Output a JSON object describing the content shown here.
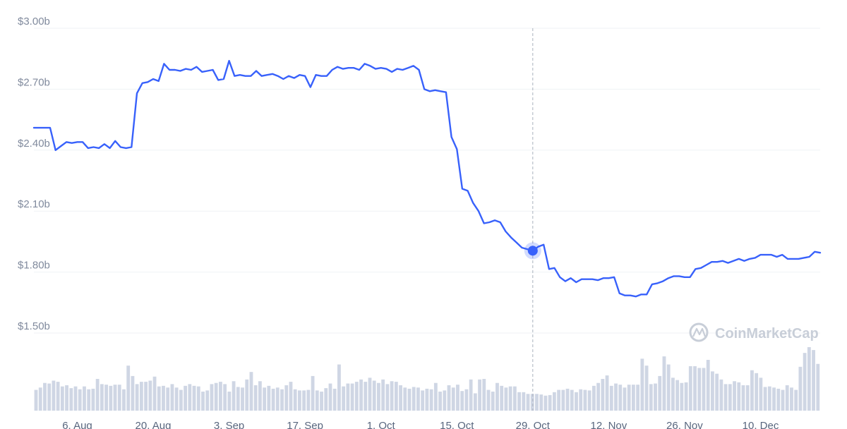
{
  "chart_data": {
    "type": "line",
    "watermark": "CoinMarketCap",
    "y_ticks": [
      "$3.00b",
      "$2.70b",
      "$2.40b",
      "$2.10b",
      "$1.80b",
      "$1.50b"
    ],
    "ylim_billions": [
      1.5,
      3.0
    ],
    "x_ticks": [
      "6. Aug",
      "20. Aug",
      "3. Sep",
      "17. Sep",
      "1. Oct",
      "15. Oct",
      "29. Oct",
      "12. Nov",
      "26. Nov",
      "10. Dec"
    ],
    "x_tick_dates": [
      "2018-08-06",
      "2018-08-20",
      "2018-09-03",
      "2018-09-17",
      "2018-10-01",
      "2018-10-15",
      "2018-10-29",
      "2018-11-12",
      "2018-11-26",
      "2018-12-10"
    ],
    "date_range": [
      "2018-07-29",
      "2018-12-21"
    ],
    "highlight": {
      "date": "2018-10-29",
      "value_billions": 1.905
    },
    "colors": {
      "line": "#3861fb",
      "volume": "#cfd6e4",
      "grid": "#eff2f5",
      "crosshair": "#aab1bd",
      "watermark": "#c8ced8"
    },
    "series": [
      {
        "kind": "market_cap",
        "unit": "billions USD",
        "points": [
          [
            "2018-07-29",
            2.51
          ],
          [
            "2018-07-31",
            2.51
          ],
          [
            "2018-08-01",
            2.51
          ],
          [
            "2018-08-02",
            2.4
          ],
          [
            "2018-08-03",
            2.42
          ],
          [
            "2018-08-04",
            2.44
          ],
          [
            "2018-08-05",
            2.435
          ],
          [
            "2018-08-06",
            2.44
          ],
          [
            "2018-08-07",
            2.44
          ],
          [
            "2018-08-08",
            2.41
          ],
          [
            "2018-08-09",
            2.415
          ],
          [
            "2018-08-10",
            2.41
          ],
          [
            "2018-08-11",
            2.43
          ],
          [
            "2018-08-12",
            2.41
          ],
          [
            "2018-08-13",
            2.445
          ],
          [
            "2018-08-14",
            2.415
          ],
          [
            "2018-08-15",
            2.41
          ],
          [
            "2018-08-16",
            2.415
          ],
          [
            "2018-08-17",
            2.68
          ],
          [
            "2018-08-18",
            2.73
          ],
          [
            "2018-08-19",
            2.735
          ],
          [
            "2018-08-20",
            2.75
          ],
          [
            "2018-08-21",
            2.74
          ],
          [
            "2018-08-22",
            2.825
          ],
          [
            "2018-08-23",
            2.795
          ],
          [
            "2018-08-24",
            2.795
          ],
          [
            "2018-08-25",
            2.79
          ],
          [
            "2018-08-26",
            2.8
          ],
          [
            "2018-08-27",
            2.795
          ],
          [
            "2018-08-28",
            2.81
          ],
          [
            "2018-08-29",
            2.785
          ],
          [
            "2018-08-30",
            2.79
          ],
          [
            "2018-08-31",
            2.795
          ],
          [
            "2018-09-01",
            2.745
          ],
          [
            "2018-09-02",
            2.75
          ],
          [
            "2018-09-03",
            2.84
          ],
          [
            "2018-09-04",
            2.765
          ],
          [
            "2018-09-05",
            2.77
          ],
          [
            "2018-09-06",
            2.765
          ],
          [
            "2018-09-07",
            2.765
          ],
          [
            "2018-09-08",
            2.79
          ],
          [
            "2018-09-09",
            2.765
          ],
          [
            "2018-09-10",
            2.77
          ],
          [
            "2018-09-11",
            2.775
          ],
          [
            "2018-09-12",
            2.765
          ],
          [
            "2018-09-13",
            2.75
          ],
          [
            "2018-09-14",
            2.765
          ],
          [
            "2018-09-15",
            2.755
          ],
          [
            "2018-09-16",
            2.77
          ],
          [
            "2018-09-17",
            2.765
          ],
          [
            "2018-09-18",
            2.71
          ],
          [
            "2018-09-19",
            2.77
          ],
          [
            "2018-09-20",
            2.765
          ],
          [
            "2018-09-21",
            2.765
          ],
          [
            "2018-09-22",
            2.795
          ],
          [
            "2018-09-23",
            2.81
          ],
          [
            "2018-09-24",
            2.8
          ],
          [
            "2018-09-25",
            2.805
          ],
          [
            "2018-09-26",
            2.805
          ],
          [
            "2018-09-27",
            2.795
          ],
          [
            "2018-09-28",
            2.825
          ],
          [
            "2018-09-29",
            2.815
          ],
          [
            "2018-09-30",
            2.8
          ],
          [
            "2018-10-01",
            2.805
          ],
          [
            "2018-10-02",
            2.8
          ],
          [
            "2018-10-03",
            2.785
          ],
          [
            "2018-10-04",
            2.8
          ],
          [
            "2018-10-05",
            2.795
          ],
          [
            "2018-10-06",
            2.805
          ],
          [
            "2018-10-07",
            2.815
          ],
          [
            "2018-10-08",
            2.795
          ],
          [
            "2018-10-09",
            2.7
          ],
          [
            "2018-10-10",
            2.69
          ],
          [
            "2018-10-11",
            2.695
          ],
          [
            "2018-10-12",
            2.69
          ],
          [
            "2018-10-13",
            2.685
          ],
          [
            "2018-10-14",
            2.465
          ],
          [
            "2018-10-15",
            2.405
          ],
          [
            "2018-10-16",
            2.21
          ],
          [
            "2018-10-17",
            2.2
          ],
          [
            "2018-10-18",
            2.14
          ],
          [
            "2018-10-19",
            2.1
          ],
          [
            "2018-10-20",
            2.04
          ],
          [
            "2018-10-21",
            2.045
          ],
          [
            "2018-10-22",
            2.055
          ],
          [
            "2018-10-23",
            2.045
          ],
          [
            "2018-10-24",
            2.0
          ],
          [
            "2018-10-25",
            1.97
          ],
          [
            "2018-10-26",
            1.945
          ],
          [
            "2018-10-27",
            1.92
          ],
          [
            "2018-10-29",
            1.905
          ],
          [
            "2018-10-30",
            1.925
          ],
          [
            "2018-10-31",
            1.935
          ],
          [
            "2018-11-01",
            1.815
          ],
          [
            "2018-11-02",
            1.82
          ],
          [
            "2018-11-03",
            1.775
          ],
          [
            "2018-11-04",
            1.755
          ],
          [
            "2018-11-05",
            1.77
          ],
          [
            "2018-11-06",
            1.75
          ],
          [
            "2018-11-07",
            1.765
          ],
          [
            "2018-11-08",
            1.765
          ],
          [
            "2018-11-09",
            1.765
          ],
          [
            "2018-11-10",
            1.76
          ],
          [
            "2018-11-11",
            1.77
          ],
          [
            "2018-11-12",
            1.77
          ],
          [
            "2018-11-13",
            1.775
          ],
          [
            "2018-11-14",
            1.695
          ],
          [
            "2018-11-15",
            1.685
          ],
          [
            "2018-11-16",
            1.685
          ],
          [
            "2018-11-17",
            1.68
          ],
          [
            "2018-11-18",
            1.69
          ],
          [
            "2018-11-19",
            1.69
          ],
          [
            "2018-11-20",
            1.74
          ],
          [
            "2018-11-21",
            1.745
          ],
          [
            "2018-11-22",
            1.755
          ],
          [
            "2018-11-23",
            1.77
          ],
          [
            "2018-11-24",
            1.78
          ],
          [
            "2018-11-25",
            1.78
          ],
          [
            "2018-11-26",
            1.775
          ],
          [
            "2018-11-27",
            1.775
          ],
          [
            "2018-11-28",
            1.815
          ],
          [
            "2018-11-29",
            1.82
          ],
          [
            "2018-11-30",
            1.835
          ],
          [
            "2018-12-01",
            1.85
          ],
          [
            "2018-12-02",
            1.85
          ],
          [
            "2018-12-03",
            1.855
          ],
          [
            "2018-12-04",
            1.845
          ],
          [
            "2018-12-05",
            1.855
          ],
          [
            "2018-12-06",
            1.865
          ],
          [
            "2018-12-07",
            1.855
          ],
          [
            "2018-12-08",
            1.865
          ],
          [
            "2018-12-09",
            1.87
          ],
          [
            "2018-12-10",
            1.885
          ],
          [
            "2018-12-11",
            1.885
          ],
          [
            "2018-12-12",
            1.885
          ],
          [
            "2018-12-13",
            1.875
          ],
          [
            "2018-12-14",
            1.885
          ],
          [
            "2018-12-15",
            1.865
          ],
          [
            "2018-12-16",
            1.865
          ],
          [
            "2018-12-17",
            1.865
          ],
          [
            "2018-12-18",
            1.87
          ],
          [
            "2018-12-19",
            1.875
          ],
          [
            "2018-12-20",
            1.9
          ],
          [
            "2018-12-21",
            1.895
          ]
        ]
      },
      {
        "kind": "volume",
        "unit": "relative",
        "values": [
          0.36,
          0.4,
          0.48,
          0.47,
          0.52,
          0.5,
          0.42,
          0.44,
          0.39,
          0.42,
          0.37,
          0.42,
          0.37,
          0.38,
          0.55,
          0.46,
          0.45,
          0.43,
          0.45,
          0.45,
          0.37,
          0.78,
          0.6,
          0.46,
          0.5,
          0.5,
          0.52,
          0.59,
          0.42,
          0.43,
          0.4,
          0.46,
          0.4,
          0.36,
          0.43,
          0.46,
          0.43,
          0.42,
          0.33,
          0.35,
          0.46,
          0.48,
          0.5,
          0.46,
          0.33,
          0.51,
          0.41,
          0.4,
          0.54,
          0.67,
          0.44,
          0.51,
          0.4,
          0.43,
          0.38,
          0.4,
          0.37,
          0.44,
          0.5,
          0.37,
          0.35,
          0.35,
          0.36,
          0.6,
          0.35,
          0.33,
          0.39,
          0.47,
          0.38,
          0.8,
          0.42,
          0.47,
          0.47,
          0.5,
          0.54,
          0.5,
          0.57,
          0.52,
          0.48,
          0.54,
          0.46,
          0.51,
          0.5,
          0.44,
          0.4,
          0.38,
          0.41,
          0.4,
          0.35,
          0.38,
          0.37,
          0.48,
          0.33,
          0.35,
          0.44,
          0.4,
          0.45,
          0.34,
          0.37,
          0.54,
          0.3,
          0.54,
          0.55,
          0.36,
          0.33,
          0.48,
          0.43,
          0.4,
          0.42,
          0.42,
          0.32,
          0.32,
          0.29,
          0.29,
          0.29,
          0.28,
          0.26,
          0.27,
          0.32,
          0.36,
          0.36,
          0.38,
          0.36,
          0.32,
          0.37,
          0.36,
          0.35,
          0.43,
          0.48,
          0.55,
          0.61,
          0.43,
          0.47,
          0.45,
          0.4,
          0.45,
          0.45,
          0.45,
          0.9,
          0.78,
          0.46,
          0.47,
          0.6,
          0.94,
          0.8,
          0.57,
          0.53,
          0.48,
          0.49,
          0.77,
          0.77,
          0.74,
          0.74,
          0.88,
          0.68,
          0.64,
          0.54,
          0.46,
          0.46,
          0.51,
          0.49,
          0.44,
          0.44,
          0.7,
          0.65,
          0.57,
          0.41,
          0.42,
          0.4,
          0.38,
          0.36,
          0.44,
          0.4,
          0.36,
          0.76,
          1.0,
          1.1,
          1.05,
          0.81
        ]
      }
    ]
  }
}
